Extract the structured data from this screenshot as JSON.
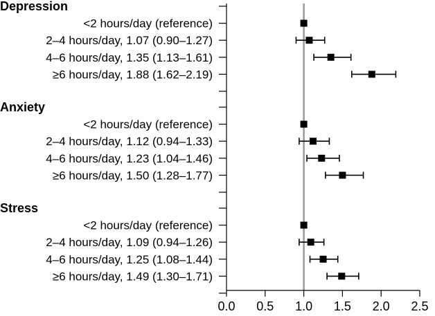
{
  "chart_data": {
    "type": "forest",
    "xlim": [
      0.0,
      2.5
    ],
    "xticks": [
      "0.0",
      "0.5",
      "1.0",
      "1.5",
      "2.0",
      "2.5"
    ],
    "reference_line": 1.0,
    "groups": [
      {
        "name": "Depression",
        "rows": [
          {
            "label": "<2 hours/day (reference)",
            "or": 1.0,
            "lo": null,
            "hi": null
          },
          {
            "label": "2–4 hours/day, 1.07 (0.90–1.27)",
            "or": 1.07,
            "lo": 0.9,
            "hi": 1.27
          },
          {
            "label": "4–6 hours/day, 1.35 (1.13–1.61)",
            "or": 1.35,
            "lo": 1.13,
            "hi": 1.61
          },
          {
            "label": "≥6 hours/day, 1.88 (1.62–2.19)",
            "or": 1.88,
            "lo": 1.62,
            "hi": 2.19
          }
        ]
      },
      {
        "name": "Anxiety",
        "rows": [
          {
            "label": "<2 hours/day (reference)",
            "or": 1.0,
            "lo": null,
            "hi": null
          },
          {
            "label": "2–4 hours/day, 1.12 (0.94–1.33)",
            "or": 1.12,
            "lo": 0.94,
            "hi": 1.33
          },
          {
            "label": "4–6 hours/day, 1.23 (1.04–1.46)",
            "or": 1.23,
            "lo": 1.04,
            "hi": 1.46
          },
          {
            "label": "≥6 hours/day, 1.50 (1.28–1.77)",
            "or": 1.5,
            "lo": 1.28,
            "hi": 1.77
          }
        ]
      },
      {
        "name": "Stress",
        "rows": [
          {
            "label": "<2 hours/day (reference)",
            "or": 1.0,
            "lo": null,
            "hi": null
          },
          {
            "label": "2–4 hours/day, 1.09 (0.94–1.26)",
            "or": 1.09,
            "lo": 0.94,
            "hi": 1.26
          },
          {
            "label": "4–6 hours/day, 1.25 (1.08–1.44)",
            "or": 1.25,
            "lo": 1.08,
            "hi": 1.44
          },
          {
            "label": "≥6 hours/day, 1.49 (1.30–1.71)",
            "or": 1.49,
            "lo": 1.3,
            "hi": 1.71
          }
        ]
      }
    ],
    "colors": {
      "marker": "#000000",
      "reference_line": "#999999",
      "axis": "#000000"
    }
  }
}
